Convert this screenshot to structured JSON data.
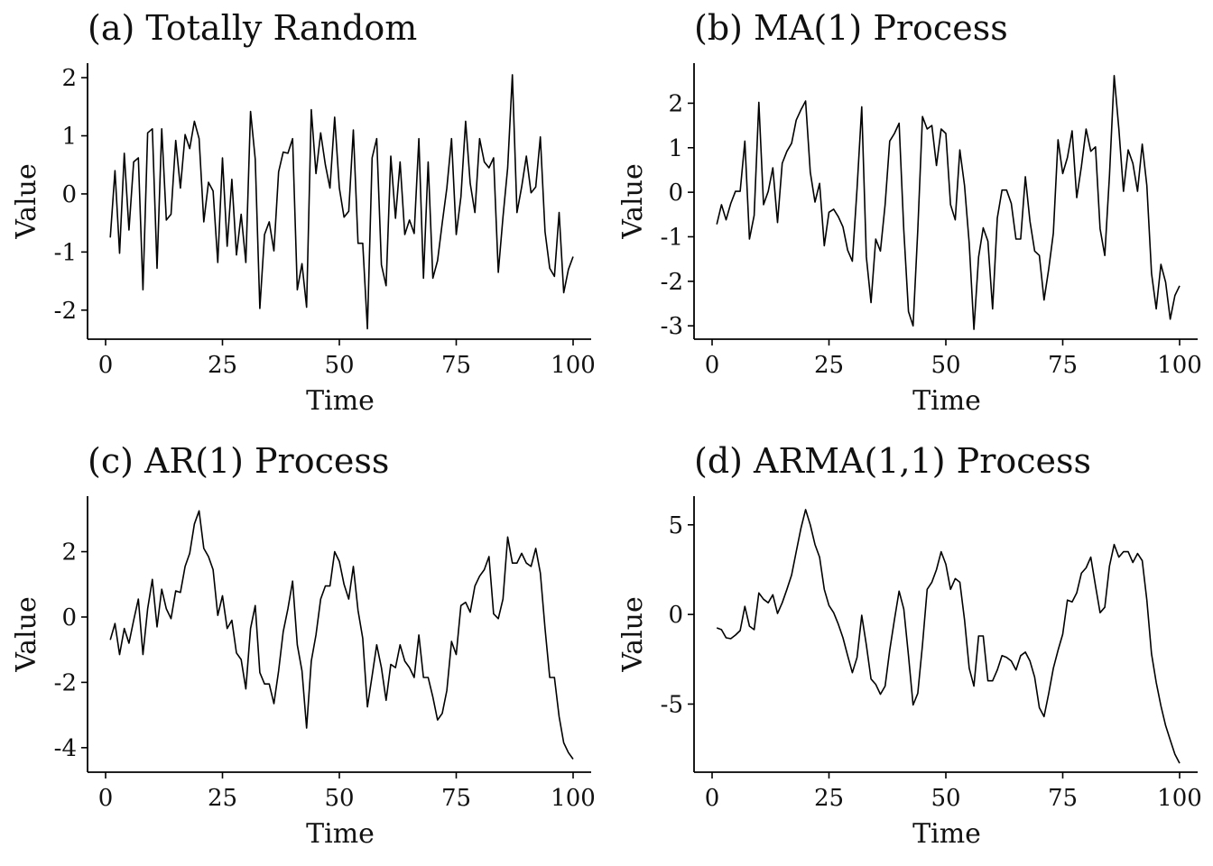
{
  "chart_data": [
    {
      "type": "line",
      "title": "(a) Totally Random",
      "xlabel": "Time",
      "ylabel": "Value",
      "xlim": [
        0,
        100
      ],
      "ylim": [
        -2.5,
        2.25
      ],
      "x_ticks": [
        0,
        25,
        50,
        75,
        100
      ],
      "y_ticks": [
        -2,
        -1,
        0,
        1,
        2
      ],
      "x_tick_labels": [
        "0",
        "25",
        "50",
        "75",
        "100"
      ],
      "y_tick_labels": [
        "-2",
        "-1",
        "0",
        "1",
        "2"
      ],
      "grid": false,
      "series": [
        {
          "x": [
            1,
            2,
            3,
            4,
            5,
            6,
            7,
            8,
            9,
            10,
            11,
            12,
            13,
            14,
            15,
            16,
            17,
            18,
            19,
            20,
            21,
            22,
            23,
            24,
            25,
            26,
            27,
            28,
            29,
            30,
            31,
            32,
            33,
            34,
            35,
            36,
            37,
            38,
            39,
            40,
            41,
            42,
            43,
            44,
            45,
            46,
            47,
            48,
            49,
            50,
            51,
            52,
            53,
            54,
            55,
            56,
            57,
            58,
            59,
            60,
            61,
            62,
            63,
            64,
            65,
            66,
            67,
            68,
            69,
            70,
            71,
            72,
            73,
            74,
            75,
            76,
            77,
            78,
            79,
            80,
            81,
            82,
            83,
            84,
            85,
            86,
            87,
            88,
            89,
            90,
            91,
            92,
            93,
            94,
            95,
            96,
            97,
            98,
            99,
            100
          ],
          "values": [
            -0.75,
            0.4,
            -1.02,
            0.7,
            -0.62,
            0.55,
            0.62,
            -1.65,
            1.05,
            1.12,
            -1.28,
            1.12,
            -0.45,
            -0.35,
            0.92,
            0.1,
            1.02,
            0.78,
            1.25,
            0.95,
            -0.48,
            0.2,
            0.05,
            -1.18,
            0.62,
            -0.9,
            0.25,
            -1.05,
            -0.35,
            -1.18,
            1.42,
            0.6,
            -1.97,
            -0.7,
            -0.48,
            -0.98,
            0.38,
            0.72,
            0.7,
            0.95,
            -1.65,
            -1.2,
            -1.95,
            1.45,
            0.35,
            1.05,
            0.5,
            0.1,
            1.32,
            0.1,
            -0.4,
            -0.3,
            1.1,
            -0.85,
            -0.85,
            -2.32,
            0.62,
            0.95,
            -1.22,
            -1.58,
            0.65,
            -0.42,
            0.55,
            -0.7,
            -0.45,
            -0.68,
            0.95,
            -1.45,
            0.55,
            -1.45,
            -1.15,
            -0.5,
            0.1,
            0.95,
            -0.7,
            -0.05,
            1.25,
            0.18,
            -0.32,
            0.95,
            0.55,
            0.45,
            0.62,
            -1.35,
            -0.4,
            0.45,
            2.05,
            -0.32,
            0.12,
            0.65,
            0.02,
            0.12,
            0.98,
            -0.65,
            -1.28,
            -1.42,
            -0.32,
            -1.7,
            -1.3,
            -1.08
          ]
        }
      ]
    },
    {
      "type": "line",
      "title": "(b) MA(1) Process",
      "xlabel": "Time",
      "ylabel": "Value",
      "xlim": [
        0,
        100
      ],
      "ylim": [
        -3.3,
        2.9
      ],
      "x_ticks": [
        0,
        25,
        50,
        75,
        100
      ],
      "y_ticks": [
        -3,
        -2,
        -1,
        0,
        1,
        2
      ],
      "x_tick_labels": [
        "0",
        "25",
        "50",
        "75",
        "100"
      ],
      "y_tick_labels": [
        "-3",
        "-2",
        "-1",
        "0",
        "1",
        "2"
      ],
      "grid": false,
      "series": [
        {
          "x": [
            1,
            2,
            3,
            4,
            5,
            6,
            7,
            8,
            9,
            10,
            11,
            12,
            13,
            14,
            15,
            16,
            17,
            18,
            19,
            20,
            21,
            22,
            23,
            24,
            25,
            26,
            27,
            28,
            29,
            30,
            31,
            32,
            33,
            34,
            35,
            36,
            37,
            38,
            39,
            40,
            41,
            42,
            43,
            44,
            45,
            46,
            47,
            48,
            49,
            50,
            51,
            52,
            53,
            54,
            55,
            56,
            57,
            58,
            59,
            60,
            61,
            62,
            63,
            64,
            65,
            66,
            67,
            68,
            69,
            70,
            71,
            72,
            73,
            74,
            75,
            76,
            77,
            78,
            79,
            80,
            81,
            82,
            83,
            84,
            85,
            86,
            87,
            88,
            89,
            90,
            91,
            92,
            93,
            94,
            95,
            96,
            97,
            98,
            99,
            100
          ],
          "values": [
            -0.72,
            -0.28,
            -0.62,
            -0.25,
            0.02,
            0.02,
            1.15,
            -1.05,
            -0.52,
            2.02,
            -0.28,
            0.02,
            0.55,
            -0.68,
            0.65,
            0.92,
            1.1,
            1.62,
            1.85,
            2.05,
            0.45,
            -0.22,
            0.2,
            -1.2,
            -0.45,
            -0.38,
            -0.55,
            -0.78,
            -1.3,
            -1.55,
            0.08,
            1.92,
            -1.45,
            -2.48,
            -1.05,
            -1.32,
            -0.28,
            1.15,
            1.32,
            1.55,
            -0.85,
            -2.68,
            -3.0,
            -0.85,
            1.7,
            1.42,
            1.5,
            0.6,
            1.42,
            1.32,
            -0.28,
            -0.62,
            0.95,
            0.15,
            -1.15,
            -3.08,
            -1.45,
            -0.8,
            -1.1,
            -2.62,
            -0.58,
            0.05,
            0.05,
            -0.25,
            -1.05,
            -1.05,
            0.35,
            -0.65,
            -1.32,
            -1.42,
            -2.42,
            -1.72,
            -0.92,
            1.18,
            0.42,
            0.78,
            1.38,
            -0.12,
            0.58,
            1.42,
            0.92,
            1.02,
            -0.82,
            -1.42,
            0.38,
            2.62,
            1.42,
            0.02,
            0.95,
            0.65,
            0.02,
            1.08,
            0.15,
            -1.82,
            -2.62,
            -1.62,
            -2.02,
            -2.85,
            -2.32,
            -2.1
          ]
        }
      ]
    },
    {
      "type": "line",
      "title": "(c) AR(1) Process",
      "xlabel": "Time",
      "ylabel": "Value",
      "xlim": [
        0,
        100
      ],
      "ylim": [
        -4.75,
        3.7
      ],
      "x_ticks": [
        0,
        25,
        50,
        75,
        100
      ],
      "y_ticks": [
        -4,
        -2,
        0,
        2
      ],
      "x_tick_labels": [
        "0",
        "25",
        "50",
        "75",
        "100"
      ],
      "y_tick_labels": [
        "-4",
        "-2",
        "0",
        "2"
      ],
      "grid": false,
      "series": [
        {
          "x": [
            1,
            2,
            3,
            4,
            5,
            6,
            7,
            8,
            9,
            10,
            11,
            12,
            13,
            14,
            15,
            16,
            17,
            18,
            19,
            20,
            21,
            22,
            23,
            24,
            25,
            26,
            27,
            28,
            29,
            30,
            31,
            32,
            33,
            34,
            35,
            36,
            37,
            38,
            39,
            40,
            41,
            42,
            43,
            44,
            45,
            46,
            47,
            48,
            49,
            50,
            51,
            52,
            53,
            54,
            55,
            56,
            57,
            58,
            59,
            60,
            61,
            62,
            63,
            64,
            65,
            66,
            67,
            68,
            69,
            70,
            71,
            72,
            73,
            74,
            75,
            76,
            77,
            78,
            79,
            80,
            81,
            82,
            83,
            84,
            85,
            86,
            87,
            88,
            89,
            90,
            91,
            92,
            93,
            94,
            95,
            96,
            97,
            98,
            99,
            100
          ],
          "values": [
            -0.7,
            -0.2,
            -1.15,
            -0.35,
            -0.8,
            -0.1,
            0.55,
            -1.15,
            0.25,
            1.15,
            -0.3,
            0.85,
            0.25,
            -0.05,
            0.8,
            0.75,
            1.55,
            1.95,
            2.85,
            3.25,
            2.1,
            1.85,
            1.45,
            0.05,
            0.65,
            -0.35,
            -0.1,
            -1.1,
            -1.3,
            -2.2,
            -0.35,
            0.35,
            -1.7,
            -2.05,
            -2.05,
            -2.65,
            -1.65,
            -0.45,
            0.25,
            1.1,
            -0.85,
            -1.65,
            -3.4,
            -1.35,
            -0.55,
            0.55,
            0.95,
            0.95,
            2.0,
            1.7,
            1.0,
            0.55,
            1.55,
            0.2,
            -0.65,
            -2.75,
            -1.8,
            -0.85,
            -1.55,
            -2.55,
            -1.45,
            -1.55,
            -0.85,
            -1.35,
            -1.55,
            -1.85,
            -0.55,
            -1.85,
            -1.85,
            -2.45,
            -3.15,
            -2.95,
            -2.25,
            -0.75,
            -1.15,
            0.35,
            0.45,
            0.15,
            0.95,
            1.25,
            1.45,
            1.85,
            0.1,
            -0.05,
            0.55,
            2.45,
            1.65,
            1.65,
            1.95,
            1.65,
            1.55,
            2.1,
            1.35,
            -0.35,
            -1.85,
            -1.85,
            -3.05,
            -3.85,
            -4.15,
            -4.35
          ]
        }
      ]
    },
    {
      "type": "line",
      "title": "(d) ARMA(1,1) Process",
      "xlabel": "Time",
      "ylabel": "Value",
      "xlim": [
        0,
        100
      ],
      "ylim": [
        -8.8,
        6.6
      ],
      "x_ticks": [
        0,
        25,
        50,
        75,
        100
      ],
      "y_ticks": [
        -5,
        0,
        5
      ],
      "x_tick_labels": [
        "0",
        "25",
        "50",
        "75",
        "100"
      ],
      "y_tick_labels": [
        "-5",
        "0",
        "5"
      ],
      "grid": false,
      "series": [
        {
          "x": [
            1,
            2,
            3,
            4,
            5,
            6,
            7,
            8,
            9,
            10,
            11,
            12,
            13,
            14,
            15,
            16,
            17,
            18,
            19,
            20,
            21,
            22,
            23,
            24,
            25,
            26,
            27,
            28,
            29,
            30,
            31,
            32,
            33,
            34,
            35,
            36,
            37,
            38,
            39,
            40,
            41,
            42,
            43,
            44,
            45,
            46,
            47,
            48,
            49,
            50,
            51,
            52,
            53,
            54,
            55,
            56,
            57,
            58,
            59,
            60,
            61,
            62,
            63,
            64,
            65,
            66,
            67,
            68,
            69,
            70,
            71,
            72,
            73,
            74,
            75,
            76,
            77,
            78,
            79,
            80,
            81,
            82,
            83,
            84,
            85,
            86,
            87,
            88,
            89,
            90,
            91,
            92,
            93,
            94,
            95,
            96,
            97,
            98,
            99,
            100
          ],
          "values": [
            -0.75,
            -0.85,
            -1.3,
            -1.35,
            -1.15,
            -0.9,
            0.45,
            -0.65,
            -0.85,
            1.2,
            0.85,
            0.65,
            1.1,
            0.05,
            0.65,
            1.4,
            2.2,
            3.5,
            4.8,
            5.85,
            5.0,
            3.9,
            3.2,
            1.4,
            0.5,
            0.1,
            -0.55,
            -1.3,
            -2.3,
            -3.25,
            -2.4,
            -0.05,
            -1.7,
            -3.6,
            -3.9,
            -4.45,
            -4.0,
            -2.0,
            -0.3,
            1.3,
            0.3,
            -2.3,
            -5.05,
            -4.4,
            -1.7,
            1.4,
            1.8,
            2.5,
            3.5,
            2.8,
            1.4,
            2.0,
            1.8,
            -0.3,
            -3.0,
            -4.0,
            -1.2,
            -1.2,
            -3.7,
            -3.7,
            -3.1,
            -2.3,
            -2.4,
            -2.6,
            -3.1,
            -2.3,
            -2.1,
            -2.6,
            -3.5,
            -5.2,
            -5.7,
            -4.4,
            -3.0,
            -2.0,
            -1.1,
            0.8,
            0.7,
            1.2,
            2.3,
            2.6,
            3.2,
            1.6,
            0.1,
            0.4,
            2.7,
            3.9,
            3.2,
            3.5,
            3.5,
            2.9,
            3.4,
            3.0,
            0.8,
            -2.2,
            -3.8,
            -5.1,
            -6.2,
            -7.0,
            -7.8,
            -8.3
          ]
        }
      ]
    }
  ]
}
